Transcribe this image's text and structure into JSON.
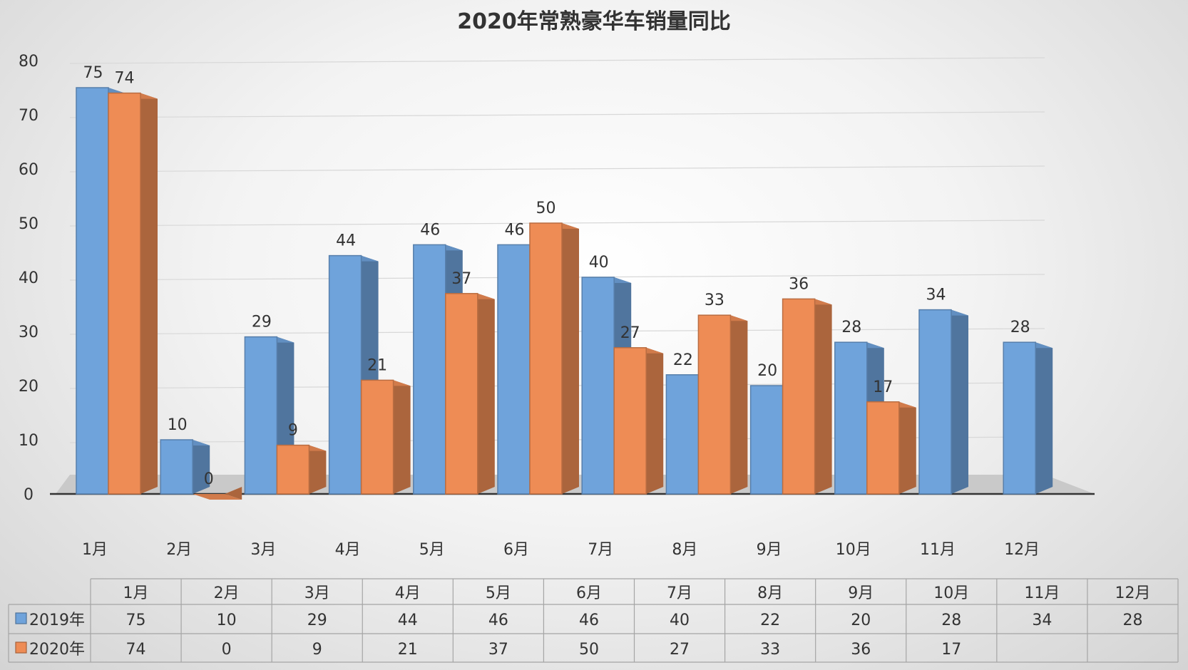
{
  "chart_data": {
    "type": "bar",
    "title": "2020年常熟豪华车销量同比",
    "categories": [
      "1月",
      "2月",
      "3月",
      "4月",
      "5月",
      "6月",
      "7月",
      "8月",
      "9月",
      "10月",
      "11月",
      "12月"
    ],
    "series": [
      {
        "name": "2019年",
        "color": "#6FA3DB",
        "values": [
          75,
          10,
          29,
          44,
          46,
          46,
          40,
          22,
          20,
          28,
          34,
          28
        ]
      },
      {
        "name": "2020年",
        "color": "#EE8C55",
        "values": [
          74,
          0,
          9,
          21,
          37,
          50,
          27,
          33,
          36,
          17,
          null,
          null
        ]
      }
    ],
    "y_ticks": [
      0,
      10,
      20,
      30,
      40,
      50,
      60,
      70,
      80
    ],
    "ylim": [
      0,
      80
    ],
    "grid": true,
    "legend": "data-table",
    "data_table": true
  }
}
